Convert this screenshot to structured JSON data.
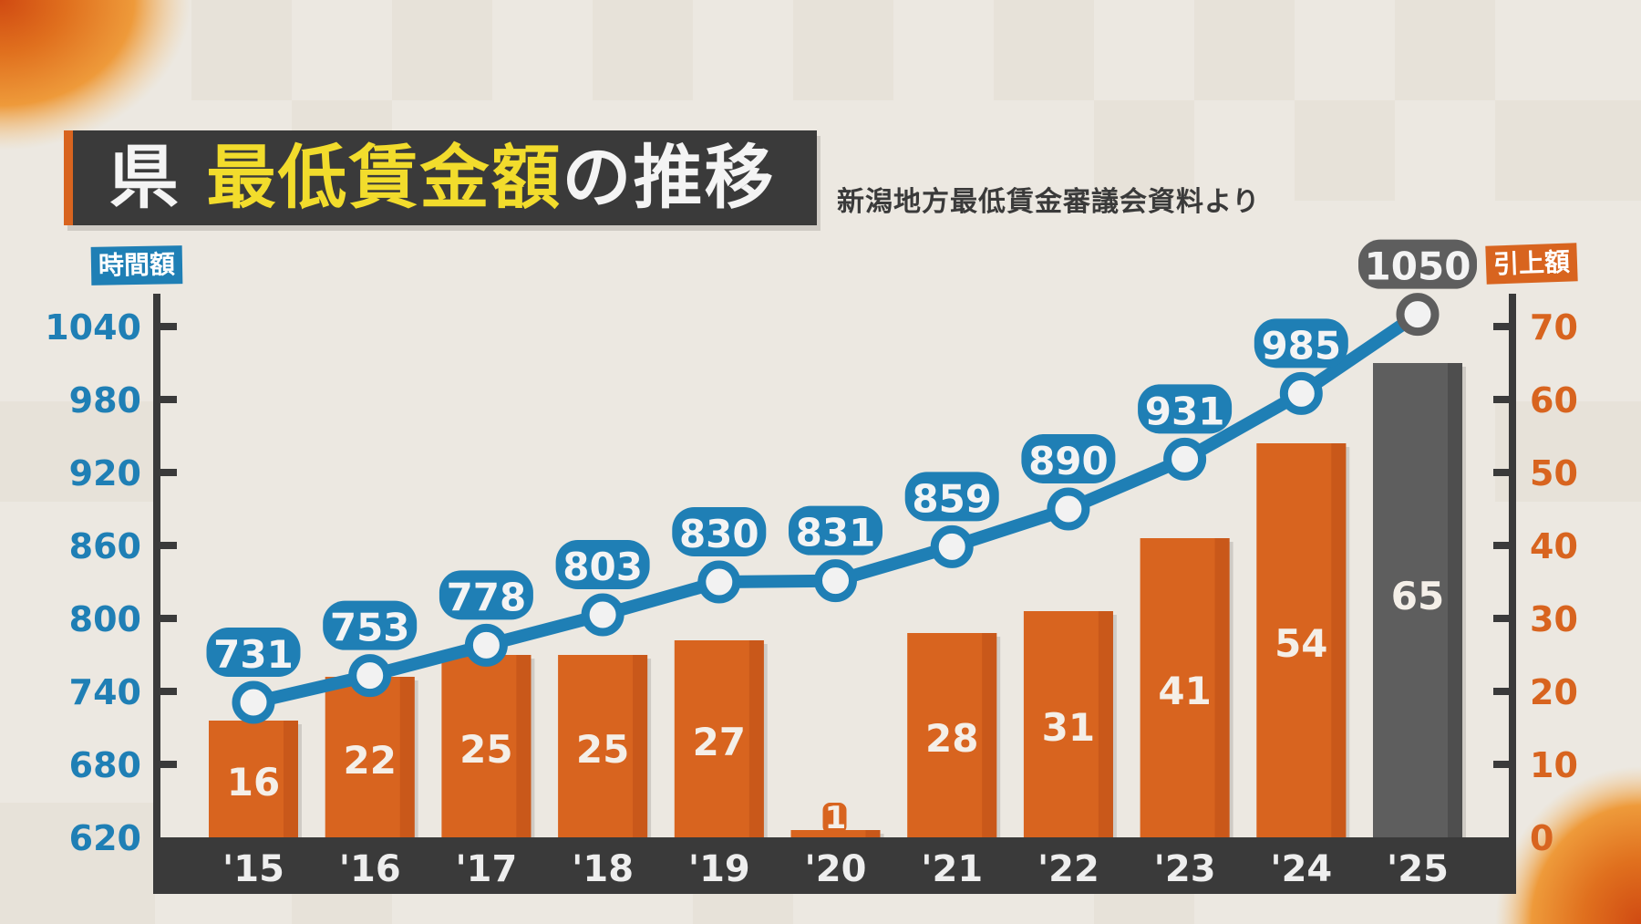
{
  "title": {
    "prefix": "県 ",
    "highlight": "最低賃金額",
    "suffix": "の推移"
  },
  "source": "新潟地方最低賃金審議会資料より",
  "axes": {
    "left_label": "時間額",
    "right_label": "引上額",
    "left_ticks": [
      "1040",
      "980",
      "920",
      "860",
      "800",
      "740",
      "680",
      "620"
    ],
    "right_ticks": [
      "70",
      "60",
      "50",
      "40",
      "30",
      "20",
      "10",
      "0"
    ]
  },
  "colors": {
    "line": "#1f7fb5",
    "bar": "#d8641f",
    "bar_highlight": "#5e5e5e",
    "axis_band": "#3a3a3a",
    "left_axis_text": "#1f7fb5",
    "right_axis_text": "#d8641f",
    "title_yellow": "#f2dc2c"
  },
  "chart_data": {
    "type": "bar+line",
    "title": "県 最低賃金額の推移",
    "subtitle": "新潟地方最低賃金審議会資料より",
    "categories": [
      "'15",
      "'16",
      "'17",
      "'18",
      "'19",
      "'20",
      "'21",
      "'22",
      "'23",
      "'24",
      "'25"
    ],
    "series": [
      {
        "name": "時間額",
        "type": "line",
        "axis": "left",
        "values": [
          731,
          753,
          778,
          803,
          830,
          831,
          859,
          890,
          931,
          985,
          1050
        ]
      },
      {
        "name": "引上額",
        "type": "bar",
        "axis": "right",
        "values": [
          16,
          22,
          25,
          25,
          27,
          1,
          28,
          31,
          41,
          54,
          65
        ]
      }
    ],
    "ylabel_left": "時間額",
    "ylabel_right": "引上額",
    "ylim_left": [
      620,
      1040
    ],
    "ylim_right": [
      0,
      70
    ],
    "yticks_left": [
      620,
      680,
      740,
      800,
      860,
      920,
      980,
      1040
    ],
    "yticks_right": [
      0,
      10,
      20,
      30,
      40,
      50,
      60,
      70
    ],
    "highlight_category": "'25",
    "grid": false,
    "legend": "none"
  }
}
